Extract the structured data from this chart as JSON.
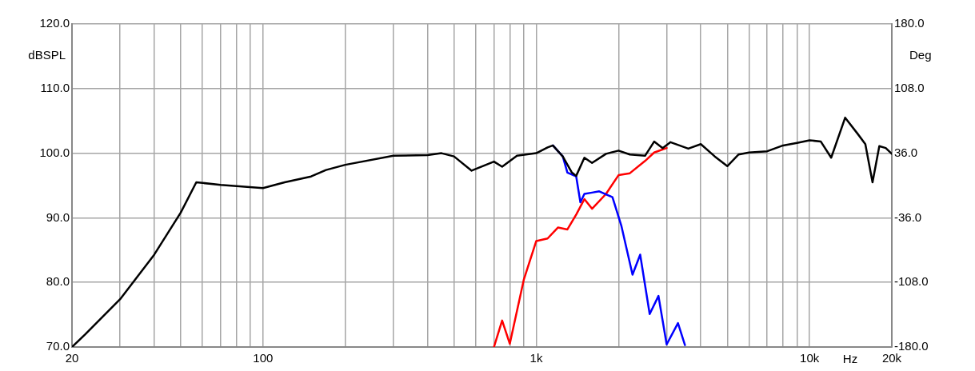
{
  "chart_data": {
    "type": "line",
    "xlabel": "Hz",
    "ylabel": "dBSPL",
    "y2label": "Deg",
    "log": "x",
    "xlim": [
      20,
      20000
    ],
    "xticks": [
      20,
      {
        "value": 30,
        "label": null
      },
      {
        "value": 40,
        "label": null
      },
      {
        "value": 50,
        "label": null
      },
      {
        "value": 60,
        "label": null
      },
      {
        "value": 70,
        "label": null
      },
      {
        "value": 80,
        "label": null
      },
      {
        "value": 90,
        "label": null
      },
      100,
      {
        "value": 200,
        "label": null
      },
      {
        "value": 300,
        "label": null
      },
      {
        "value": 400,
        "label": null
      },
      {
        "value": 500,
        "label": null
      },
      {
        "value": 600,
        "label": null
      },
      {
        "value": 700,
        "label": null
      },
      {
        "value": 800,
        "label": null
      },
      {
        "value": 900,
        "label": null
      },
      {
        "value": 1000,
        "label": "1k"
      },
      {
        "value": 2000,
        "label": null
      },
      {
        "value": 3000,
        "label": null
      },
      {
        "value": 4000,
        "label": null
      },
      {
        "value": 5000,
        "label": null
      },
      {
        "value": 6000,
        "label": null
      },
      {
        "value": 7000,
        "label": null
      },
      {
        "value": 8000,
        "label": null
      },
      {
        "value": 9000,
        "label": null
      },
      {
        "value": 10000,
        "label": "10k"
      },
      {
        "value": 20000,
        "label": "20k"
      }
    ],
    "ylim": [
      70,
      120
    ],
    "yticks": [
      {
        "value": 70,
        "label": "70.0"
      },
      {
        "value": 80,
        "label": "80.0"
      },
      {
        "value": 90,
        "label": "90.0"
      },
      {
        "value": 100,
        "label": "100.0"
      },
      {
        "value": 110,
        "label": "110.0"
      },
      {
        "value": 120,
        "label": "120.0"
      }
    ],
    "y2lim": [
      -180,
      180
    ],
    "y2ticks": [
      {
        "value": -180,
        "label": "-180.0"
      },
      {
        "value": -108,
        "label": "-108.0"
      },
      {
        "value": -36,
        "label": "-36.0"
      },
      {
        "value": 36,
        "label": "36.0"
      },
      {
        "value": 108,
        "label": "108.0"
      },
      {
        "value": 180,
        "label": "180.0"
      }
    ],
    "grid": true,
    "legend": false,
    "marker": "none",
    "line_style": "solid",
    "series": [
      {
        "color": "#000000",
        "x": [
          20,
          22.4,
          30,
          40,
          50,
          57,
          70,
          80,
          100,
          120,
          150,
          170,
          200,
          300,
          400,
          450,
          500,
          580,
          700,
          750,
          850,
          1000,
          1100,
          1150,
          1250,
          1350,
          1400,
          1500,
          1600,
          1800,
          2000,
          2200,
          2500,
          2700,
          2900,
          3100,
          3600,
          4000,
          4500,
          5000,
          5500,
          6000,
          7000,
          8000,
          9000,
          10000,
          11000,
          12000,
          13500,
          15000,
          16000,
          17000,
          18000,
          19000,
          20000
        ],
        "values": [
          70,
          72,
          77.4,
          84.3,
          90.8,
          95.5,
          95.1,
          94.9,
          94.6,
          95.5,
          96.4,
          97.4,
          98.2,
          99.6,
          99.7,
          100,
          99.5,
          97.3,
          98.7,
          97.9,
          99.6,
          100,
          100.9,
          101.2,
          99.5,
          97,
          96.5,
          99.3,
          98.5,
          99.9,
          100.4,
          99.8,
          99.6,
          101.8,
          100.8,
          101.7,
          100.7,
          101.4,
          99.5,
          98,
          99.8,
          100.1,
          100.3,
          101.2,
          101.6,
          102,
          101.8,
          99.3,
          105.5,
          103,
          101.4,
          95.5,
          101.1,
          100.8,
          99.9
        ]
      },
      {
        "color": "#0000ff",
        "x": [
          1150,
          1250,
          1300,
          1400,
          1450,
          1500,
          1600,
          1700,
          1900,
          2050,
          2250,
          2400,
          2600,
          2800,
          3000,
          3300,
          3500
        ],
        "values": [
          101.2,
          99.5,
          97,
          96.4,
          92.4,
          93.7,
          93.9,
          94.1,
          93.2,
          88.7,
          81.2,
          84.3,
          75.1,
          77.9,
          70.4,
          73.7,
          70.3
        ]
      },
      {
        "color": "#ff0000",
        "x": [
          700,
          750,
          800,
          900,
          1000,
          1100,
          1200,
          1300,
          1400,
          1500,
          1600,
          1800,
          2000,
          2200,
          2500,
          2700,
          3000
        ],
        "values": [
          70,
          74.1,
          70.5,
          80.4,
          86.4,
          86.8,
          88.5,
          88.2,
          90.5,
          92.9,
          91.4,
          93.7,
          96.6,
          96.9,
          98.8,
          100.1,
          100.8
        ]
      }
    ]
  }
}
